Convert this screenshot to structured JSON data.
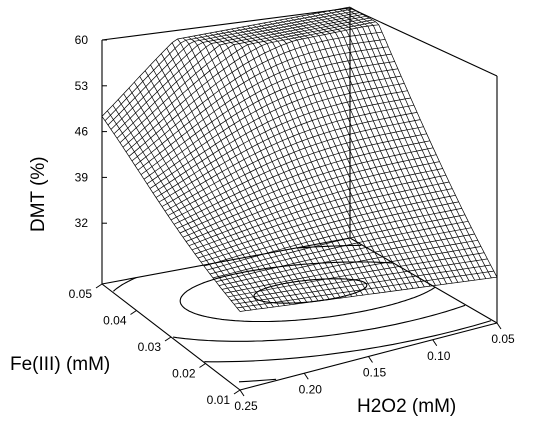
{
  "chart_data": {
    "type": "surface3d",
    "zlabel": "DMT (%)",
    "ylabel": "Fe(III) (mM)",
    "xlabel": "H2O2 (mM)",
    "z_ticks": [
      "60",
      "53",
      "46",
      "39",
      "32"
    ],
    "fe_ticks": [
      "0.05",
      "0.04",
      "0.03",
      "0.02",
      "0.01"
    ],
    "h2o2_ticks": [
      "0.25",
      "0.20",
      "0.15",
      "0.10",
      "0.05"
    ],
    "z_range": [
      25,
      60
    ],
    "fe_range": [
      0.01,
      0.05
    ],
    "h2o2_range": [
      0.05,
      0.25
    ],
    "grid": false,
    "surface_corner_values": {
      "fe_0.05_h2o2_0.25": 45,
      "fe_0.05_h2o2_0.05": 60,
      "fe_0.01_h2o2_0.05": 32,
      "fe_0.01_h2o2_0.25": 37
    },
    "contour_plot": true
  }
}
